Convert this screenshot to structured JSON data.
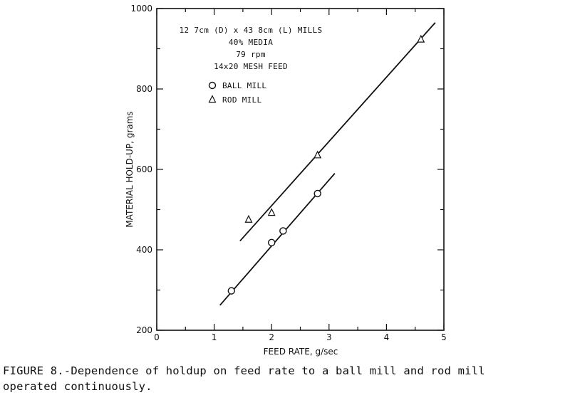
{
  "chart_data": {
    "type": "scatter",
    "xlabel": "FEED RATE, g/sec",
    "ylabel": "MATERIAL HOLD-UP, grams",
    "xlim": [
      0,
      5
    ],
    "ylim": [
      200,
      1000
    ],
    "x_ticks": [
      0,
      1,
      2,
      3,
      4,
      5
    ],
    "y_ticks": [
      200,
      400,
      600,
      800,
      1000
    ],
    "x_tick_labels": [
      "0",
      "1",
      "2",
      "3",
      "4",
      "5"
    ],
    "y_tick_labels": [
      "200",
      "400",
      "600",
      "800",
      "1000"
    ],
    "annotation_lines": [
      "12 7cm (D) x 43 8cm (L) MILLS",
      "40% MEDIA",
      "79 rpm",
      "14x20 MESH FEED"
    ],
    "series": [
      {
        "name": "BALL MILL",
        "marker": "circle",
        "points": [
          [
            1.3,
            298
          ],
          [
            2.0,
            418
          ],
          [
            2.2,
            447
          ],
          [
            2.8,
            540
          ]
        ],
        "fit_line": [
          [
            1.1,
            262
          ],
          [
            3.1,
            590
          ]
        ]
      },
      {
        "name": "ROD MILL",
        "marker": "triangle",
        "points": [
          [
            1.6,
            475
          ],
          [
            2.0,
            492
          ],
          [
            2.8,
            635
          ],
          [
            4.6,
            923
          ]
        ],
        "fit_line": [
          [
            1.45,
            422
          ],
          [
            4.85,
            965
          ]
        ]
      }
    ]
  },
  "caption": {
    "line1": "FIGURE 8.-Dependence of holdup on feed rate to a ball mill and rod mill",
    "line2": "operated continuously."
  }
}
